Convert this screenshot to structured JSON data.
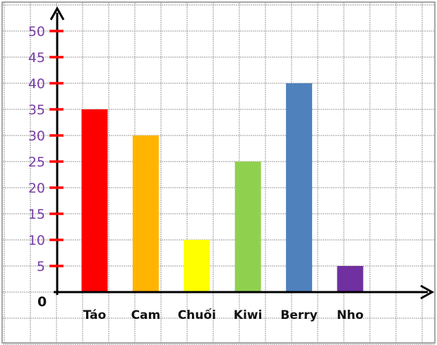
{
  "chart_data": {
    "type": "bar",
    "title": "",
    "xlabel": "",
    "ylabel": "",
    "categories": [
      "Táo",
      "Cam",
      "Chuối",
      "Kiwi",
      "Berry",
      "Nho"
    ],
    "values": [
      35,
      30,
      10,
      25,
      40,
      5
    ],
    "colors": [
      "#ff0000",
      "#ffb400",
      "#ffff00",
      "#8fd14f",
      "#4f81bd",
      "#7030a0"
    ],
    "ylim": [
      0,
      50
    ],
    "yticks": [
      "5",
      "10",
      "15",
      "20",
      "25",
      "30",
      "35",
      "40",
      "45",
      "50"
    ],
    "origin_label": "0",
    "grid": true,
    "legend": "none",
    "tick_mark_color": "#ff0000",
    "tick_label_color": "#7a3fa3"
  }
}
